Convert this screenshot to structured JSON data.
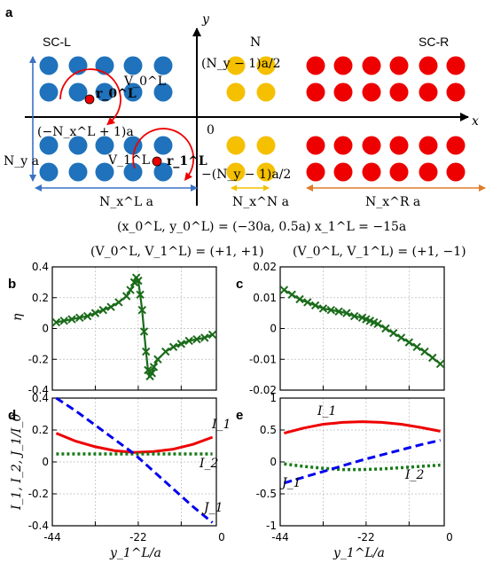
{
  "panel_a": {
    "letter": "a",
    "y_axis": "y",
    "x_axis": "x",
    "sc_left": "SC-L",
    "normal": "N",
    "sc_right": "SC-R",
    "top_label": "(N_y − 1)a/2",
    "bottom_label": "−(N_y − 1)a/2",
    "left_label": "(−N_x^L + 1)a",
    "origin": "0",
    "height_label": "N_y a",
    "r0": "r_0^L",
    "r1": "r_1^L",
    "v0": "V_0^L",
    "v1": "V_1^L",
    "width_left": "N_x^L a",
    "width_n": "N_x^N a",
    "width_right": "N_x^R a",
    "params": "(x_0^L, y_0^L) = (−30a, 0.5a)   x_1^L = −15a",
    "colors": {
      "left": "#1f72bb",
      "normal": "#f5c000",
      "right": "#ee0000",
      "vortex": "#ee0000",
      "arrow_left": "#3a72c4",
      "arrow_right": "#e07b2a"
    }
  },
  "headers": {
    "left": "(V_0^L, V_1^L) = (+1, +1)",
    "right": "(V_0^L, V_1^L) = (+1, −1)"
  },
  "xlabel": "y_1^L/a",
  "chart_data": [
    {
      "id": "b",
      "type": "line",
      "letter": "b",
      "ylabel": "η",
      "xlim": [
        -44,
        -2
      ],
      "ylim": [
        -0.4,
        0.4
      ],
      "yticks": [
        "0.4",
        "0.2",
        "0",
        "-0.2",
        "-0.4"
      ],
      "series": [
        {
          "color": "#1a6b1a",
          "marker": "x",
          "x": [
            -43,
            -41,
            -39,
            -37,
            -35,
            -33,
            -31,
            -29,
            -27,
            -25,
            -24,
            -23,
            -22.5,
            -22,
            -21.5,
            -21,
            -20.5,
            -20,
            -19.5,
            -19,
            -18.5,
            -18,
            -17,
            -15,
            -13,
            -11,
            -9,
            -7,
            -5,
            -3
          ],
          "y": [
            0.04,
            0.05,
            0.06,
            0.07,
            0.08,
            0.1,
            0.12,
            0.14,
            0.17,
            0.21,
            0.25,
            0.3,
            0.33,
            0.31,
            0.22,
            0.12,
            -0.02,
            -0.15,
            -0.27,
            -0.31,
            -0.29,
            -0.25,
            -0.2,
            -0.15,
            -0.12,
            -0.1,
            -0.08,
            -0.07,
            -0.06,
            -0.04
          ]
        }
      ]
    },
    {
      "id": "c",
      "type": "line",
      "letter": "c",
      "ylabel": "",
      "xlim": [
        -44,
        -2
      ],
      "ylim": [
        -0.02,
        0.02
      ],
      "yticks": [
        "0.02",
        "0.01",
        "0",
        "-0.01",
        "-0.02"
      ],
      "series": [
        {
          "color": "#1a6b1a",
          "marker": "x",
          "x": [
            -43,
            -41,
            -39,
            -37,
            -35,
            -33,
            -31,
            -29,
            -27,
            -25,
            -23,
            -22,
            -21,
            -20,
            -19,
            -17,
            -15,
            -13,
            -11,
            -9,
            -7,
            -5,
            -3
          ],
          "y": [
            0.0125,
            0.011,
            0.0095,
            0.0085,
            0.0075,
            0.0065,
            0.006,
            0.0055,
            0.005,
            0.004,
            0.0035,
            0.003,
            0.0025,
            0.002,
            0.0015,
            0.0,
            -0.0015,
            -0.003,
            -0.0045,
            -0.006,
            -0.0075,
            -0.0095,
            -0.0115
          ]
        }
      ]
    },
    {
      "id": "d",
      "type": "line",
      "letter": "d",
      "ylabel": "I_1, I_2, J_1/I_0",
      "xlim": [
        -44,
        -2
      ],
      "ylim": [
        -0.4,
        0.4
      ],
      "yticks": [
        "0.4",
        "0.2",
        "0",
        "-0.2",
        "-0.4"
      ],
      "xticks": [
        "-44",
        "-22",
        "0"
      ],
      "series": [
        {
          "name": "I_1",
          "color": "#ee0000",
          "style": "solid",
          "x": [
            -43,
            -38,
            -33,
            -28,
            -23,
            -18,
            -13,
            -8,
            -3
          ],
          "y": [
            0.18,
            0.13,
            0.095,
            0.07,
            0.06,
            0.065,
            0.08,
            0.11,
            0.155
          ]
        },
        {
          "name": "I_2",
          "color": "#1a7a1a",
          "style": "dotted",
          "x": [
            -43,
            -38,
            -33,
            -28,
            -23,
            -18,
            -13,
            -8,
            -3
          ],
          "y": [
            0.05,
            0.05,
            0.05,
            0.05,
            0.05,
            0.05,
            0.05,
            0.05,
            0.05
          ]
        },
        {
          "name": "J_1",
          "color": "#0000ee",
          "style": "dashed",
          "x": [
            -43,
            -38,
            -33,
            -28,
            -23,
            -18,
            -13,
            -8,
            -3
          ],
          "y": [
            0.4,
            0.32,
            0.23,
            0.14,
            0.05,
            -0.06,
            -0.17,
            -0.28,
            -0.38
          ]
        }
      ]
    },
    {
      "id": "e",
      "type": "line",
      "letter": "e",
      "ylabel": "",
      "xlim": [
        -44,
        -2
      ],
      "ylim": [
        -1,
        1
      ],
      "yticks": [
        "1",
        "0.5",
        "0",
        "-0.5",
        "-1"
      ],
      "xticks": [
        "-44",
        "-22",
        "0"
      ],
      "series": [
        {
          "name": "I_1",
          "color": "#ee0000",
          "style": "solid",
          "x": [
            -43,
            -38,
            -33,
            -28,
            -23,
            -18,
            -13,
            -8,
            -3
          ],
          "y": [
            0.45,
            0.53,
            0.59,
            0.62,
            0.63,
            0.62,
            0.59,
            0.54,
            0.48
          ]
        },
        {
          "name": "I_2",
          "color": "#1a7a1a",
          "style": "dotted",
          "x": [
            -43,
            -38,
            -33,
            -28,
            -23,
            -18,
            -13,
            -8,
            -3
          ],
          "y": [
            -0.03,
            -0.07,
            -0.1,
            -0.12,
            -0.12,
            -0.11,
            -0.09,
            -0.07,
            -0.05
          ]
        },
        {
          "name": "J_1",
          "color": "#0000ee",
          "style": "dashed",
          "x": [
            -43,
            -38,
            -33,
            -28,
            -23,
            -18,
            -13,
            -8,
            -3
          ],
          "y": [
            -0.33,
            -0.24,
            -0.15,
            -0.06,
            0.03,
            0.11,
            0.19,
            0.27,
            0.34
          ]
        }
      ]
    }
  ]
}
